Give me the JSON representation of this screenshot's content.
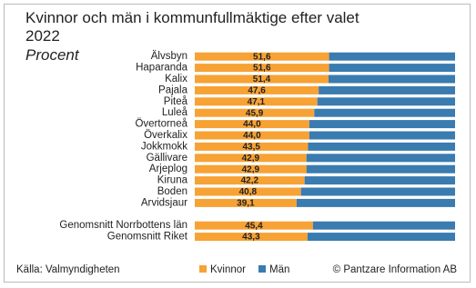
{
  "chart_data": {
    "type": "stacked_barh",
    "title": "Kvinnor och män i kommunfullmäktige efter valet 2022",
    "subtitle": "Procent",
    "source": "Källa: Valmyndigheten",
    "credit": "© Pantzare Information AB",
    "categories": [
      "Älvsbyn",
      "Haparanda",
      "Kalix",
      "Pajala",
      "Piteå",
      "Luleå",
      "Övertorneå",
      "Överkalix",
      "Jokkmokk",
      "Gällivare",
      "Arjeplog",
      "Kiruna",
      "Boden",
      "Arvidsjaur",
      null,
      "Genomsnitt Norrbottens län",
      "Genomsnitt Riket"
    ],
    "xlim": [
      0,
      100
    ],
    "legend": "bottom",
    "series": [
      {
        "name": "Kvinnor",
        "color": "#f7a234",
        "values": [
          51.6,
          51.6,
          51.4,
          47.6,
          47.1,
          45.9,
          44.0,
          44.0,
          43.5,
          42.9,
          42.9,
          42.2,
          40.8,
          39.1,
          null,
          45.4,
          43.3
        ],
        "value_labels": [
          "51,6",
          "51,6",
          "51,4",
          "47,6",
          "47,1",
          "45,9",
          "44,0",
          "44,0",
          "43,5",
          "42,9",
          "42,9",
          "42,2",
          "40,8",
          "39,1",
          null,
          "45,4",
          "43,3"
        ]
      },
      {
        "name": "Män",
        "color": "#3a7bb0",
        "values": [
          48.4,
          48.4,
          48.6,
          52.4,
          52.9,
          54.1,
          56.0,
          56.0,
          56.5,
          57.1,
          57.1,
          57.8,
          59.2,
          60.9,
          null,
          54.6,
          56.7
        ]
      }
    ]
  }
}
